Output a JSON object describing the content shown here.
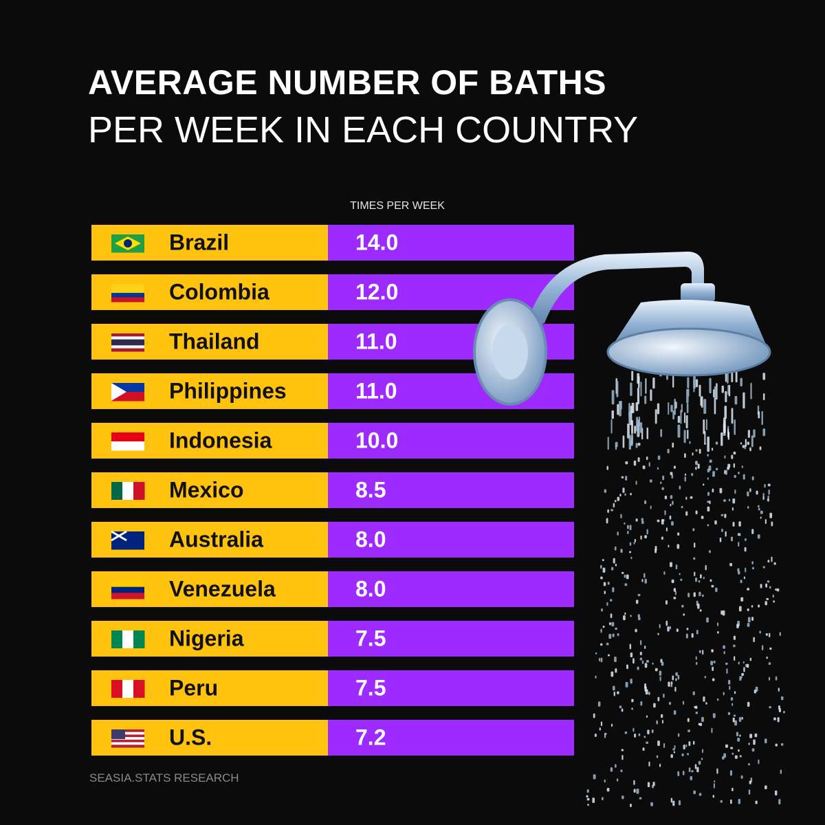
{
  "header": {
    "title": "AVERAGE NUMBER OF BATHS",
    "subtitle": "PER WEEK IN EACH COUNTRY"
  },
  "table": {
    "column_header": "TIMES PER WEEK",
    "rows": [
      [
        "Brazil",
        "14.0"
      ],
      [
        "Colombia",
        "12.0"
      ],
      [
        "Thailand",
        "11.0"
      ],
      [
        "Philippines",
        "11.0"
      ],
      [
        "Indonesia",
        "10.0"
      ],
      [
        "Mexico",
        "8.5"
      ],
      [
        "Australia",
        "8.0"
      ],
      [
        "Venezuela",
        "8.0"
      ],
      [
        "Nigeria",
        "7.5"
      ],
      [
        "Peru",
        "7.5"
      ],
      [
        "U.S.",
        "7.2"
      ]
    ]
  },
  "footer": {
    "source": "SEASIA.STATS RESEARCH"
  }
}
